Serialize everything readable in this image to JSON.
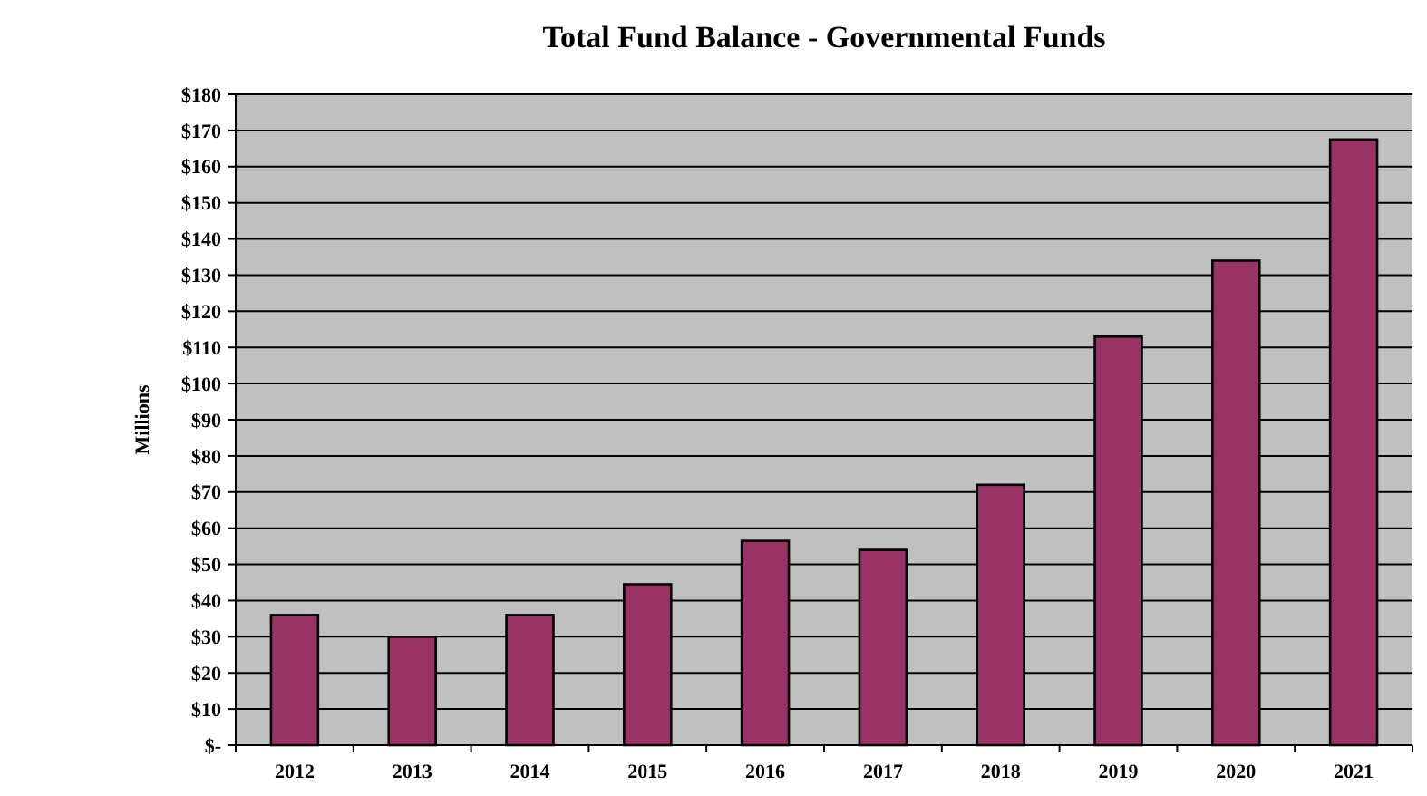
{
  "chart_data": {
    "type": "bar",
    "title": "Total Fund Balance - Governmental Funds",
    "ylabel": "Millions",
    "categories": [
      "2012",
      "2013",
      "2014",
      "2015",
      "2016",
      "2017",
      "2018",
      "2019",
      "2020",
      "2021"
    ],
    "values": [
      36,
      30,
      36,
      44.5,
      56.5,
      54,
      72,
      113,
      134,
      167.5
    ],
    "color": "#993366",
    "ylim": [
      0,
      180
    ],
    "yticks": [
      {
        "value": 0,
        "label": "$-"
      },
      {
        "value": 10,
        "label": "$10"
      },
      {
        "value": 20,
        "label": "$20"
      },
      {
        "value": 30,
        "label": "$30"
      },
      {
        "value": 40,
        "label": "$40"
      },
      {
        "value": 50,
        "label": "$50"
      },
      {
        "value": 60,
        "label": "$60"
      },
      {
        "value": 70,
        "label": "$70"
      },
      {
        "value": 80,
        "label": "$80"
      },
      {
        "value": 90,
        "label": "$90"
      },
      {
        "value": 100,
        "label": "$100"
      },
      {
        "value": 110,
        "label": "$110"
      },
      {
        "value": 120,
        "label": "$120"
      },
      {
        "value": 130,
        "label": "$130"
      },
      {
        "value": 140,
        "label": "$140"
      },
      {
        "value": 150,
        "label": "$150"
      },
      {
        "value": 160,
        "label": "$160"
      },
      {
        "value": 170,
        "label": "$170"
      },
      {
        "value": 180,
        "label": "$180"
      }
    ],
    "grid": "y"
  }
}
